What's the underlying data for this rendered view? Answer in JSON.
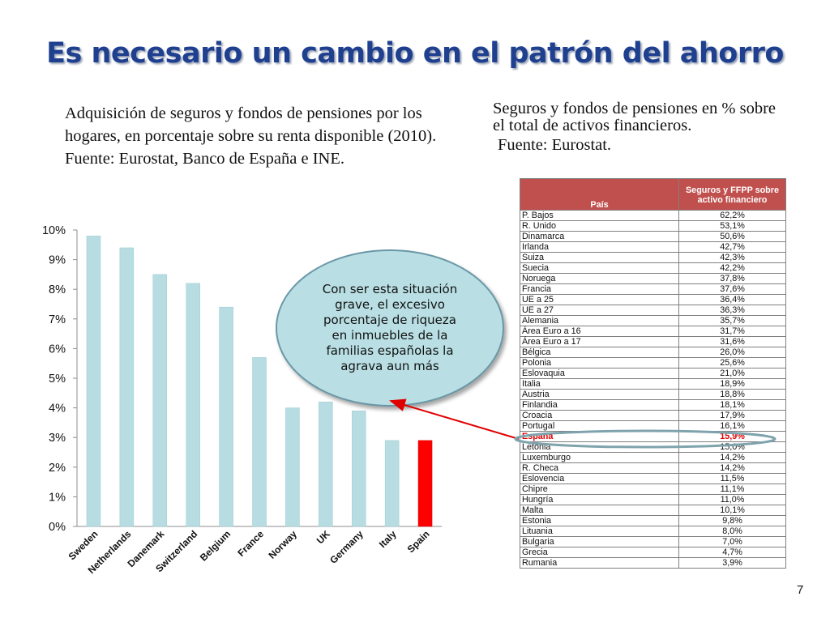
{
  "slide": {
    "title": "Es necesario un cambio en el patrón del ahorro",
    "left_caption": "Adquisición de seguros y fondos de pensiones por los hogares, en porcentaje sobre su renta disponible (2010). Fuente: Eurostat, Banco de España e INE.",
    "right_caption_line1": "Seguros y fondos de pensiones en % sobre",
    "right_caption_line2": "el total de activos financieros.",
    "right_caption_source": "Fuente: Eurostat.",
    "callout": "Con ser esta situación grave, el excesivo porcentaje de riqueza en inmuebles de la familias españolas la agrava aun más",
    "page_number": "7"
  },
  "colors": {
    "title": "#1f3f8f",
    "bar": "#b7dde2",
    "bar_highlight": "#ff0000",
    "table_header": "#c0504d",
    "arrow": "#e00000"
  },
  "chart_data": [
    {
      "type": "bar",
      "categories": [
        "Sweden",
        "Netherlands",
        "Danemark",
        "Switzerland",
        "Belgium",
        "France",
        "Norway",
        "UK",
        "Germany",
        "Italy",
        "Spain"
      ],
      "values": [
        9.8,
        9.4,
        8.5,
        8.2,
        7.4,
        5.7,
        4.0,
        4.2,
        3.9,
        2.9,
        2.9
      ],
      "highlight": "Spain",
      "ylim": [
        0,
        10
      ],
      "yticks": [
        "0%",
        "1%",
        "2%",
        "3%",
        "4%",
        "5%",
        "6%",
        "7%",
        "8%",
        "9%",
        "10%"
      ],
      "xlabel": "",
      "ylabel": "",
      "grid": false
    },
    {
      "type": "table",
      "columns": [
        "País",
        "Seguros y FFPP sobre activo financiero"
      ],
      "rows": [
        [
          "P. Bajos",
          "62,2%"
        ],
        [
          "R. Unido",
          "53,1%"
        ],
        [
          "Dinamarca",
          "50,6%"
        ],
        [
          "Irlanda",
          "42,7%"
        ],
        [
          "Suiza",
          "42,3%"
        ],
        [
          "Suecia",
          "42,2%"
        ],
        [
          "Noruega",
          "37,8%"
        ],
        [
          "Francia",
          "37,6%"
        ],
        [
          "UE a 25",
          "36,4%"
        ],
        [
          "UE a 27",
          "36,3%"
        ],
        [
          "Alemania",
          "35,7%"
        ],
        [
          "Área Euro a 16",
          "31,7%"
        ],
        [
          "Área Euro a 17",
          "31,6%"
        ],
        [
          "Bélgica",
          "26,0%"
        ],
        [
          "Polonia",
          "25,6%"
        ],
        [
          "Eslovaquia",
          "21,0%"
        ],
        [
          "Italia",
          "18,9%"
        ],
        [
          "Austria",
          "18,8%"
        ],
        [
          "Finlandia",
          "18,1%"
        ],
        [
          "Croacia",
          "17,9%"
        ],
        [
          "Portugal",
          "16,1%"
        ],
        [
          "España",
          "15,9%"
        ],
        [
          "Letonia",
          "15,0%"
        ],
        [
          "Luxemburgo",
          "14,2%"
        ],
        [
          "R. Checa",
          "14,2%"
        ],
        [
          "Eslovencia",
          "11,5%"
        ],
        [
          "Chipre",
          "11,1%"
        ],
        [
          "Hungría",
          "11,0%"
        ],
        [
          "Malta",
          "10,1%"
        ],
        [
          "Estonia",
          "9,8%"
        ],
        [
          "Lituania",
          "8,0%"
        ],
        [
          "Bulgaria",
          "7,0%"
        ],
        [
          "Grecia",
          "4,7%"
        ],
        [
          "Rumania",
          "3,9%"
        ]
      ],
      "highlight": "España"
    }
  ]
}
